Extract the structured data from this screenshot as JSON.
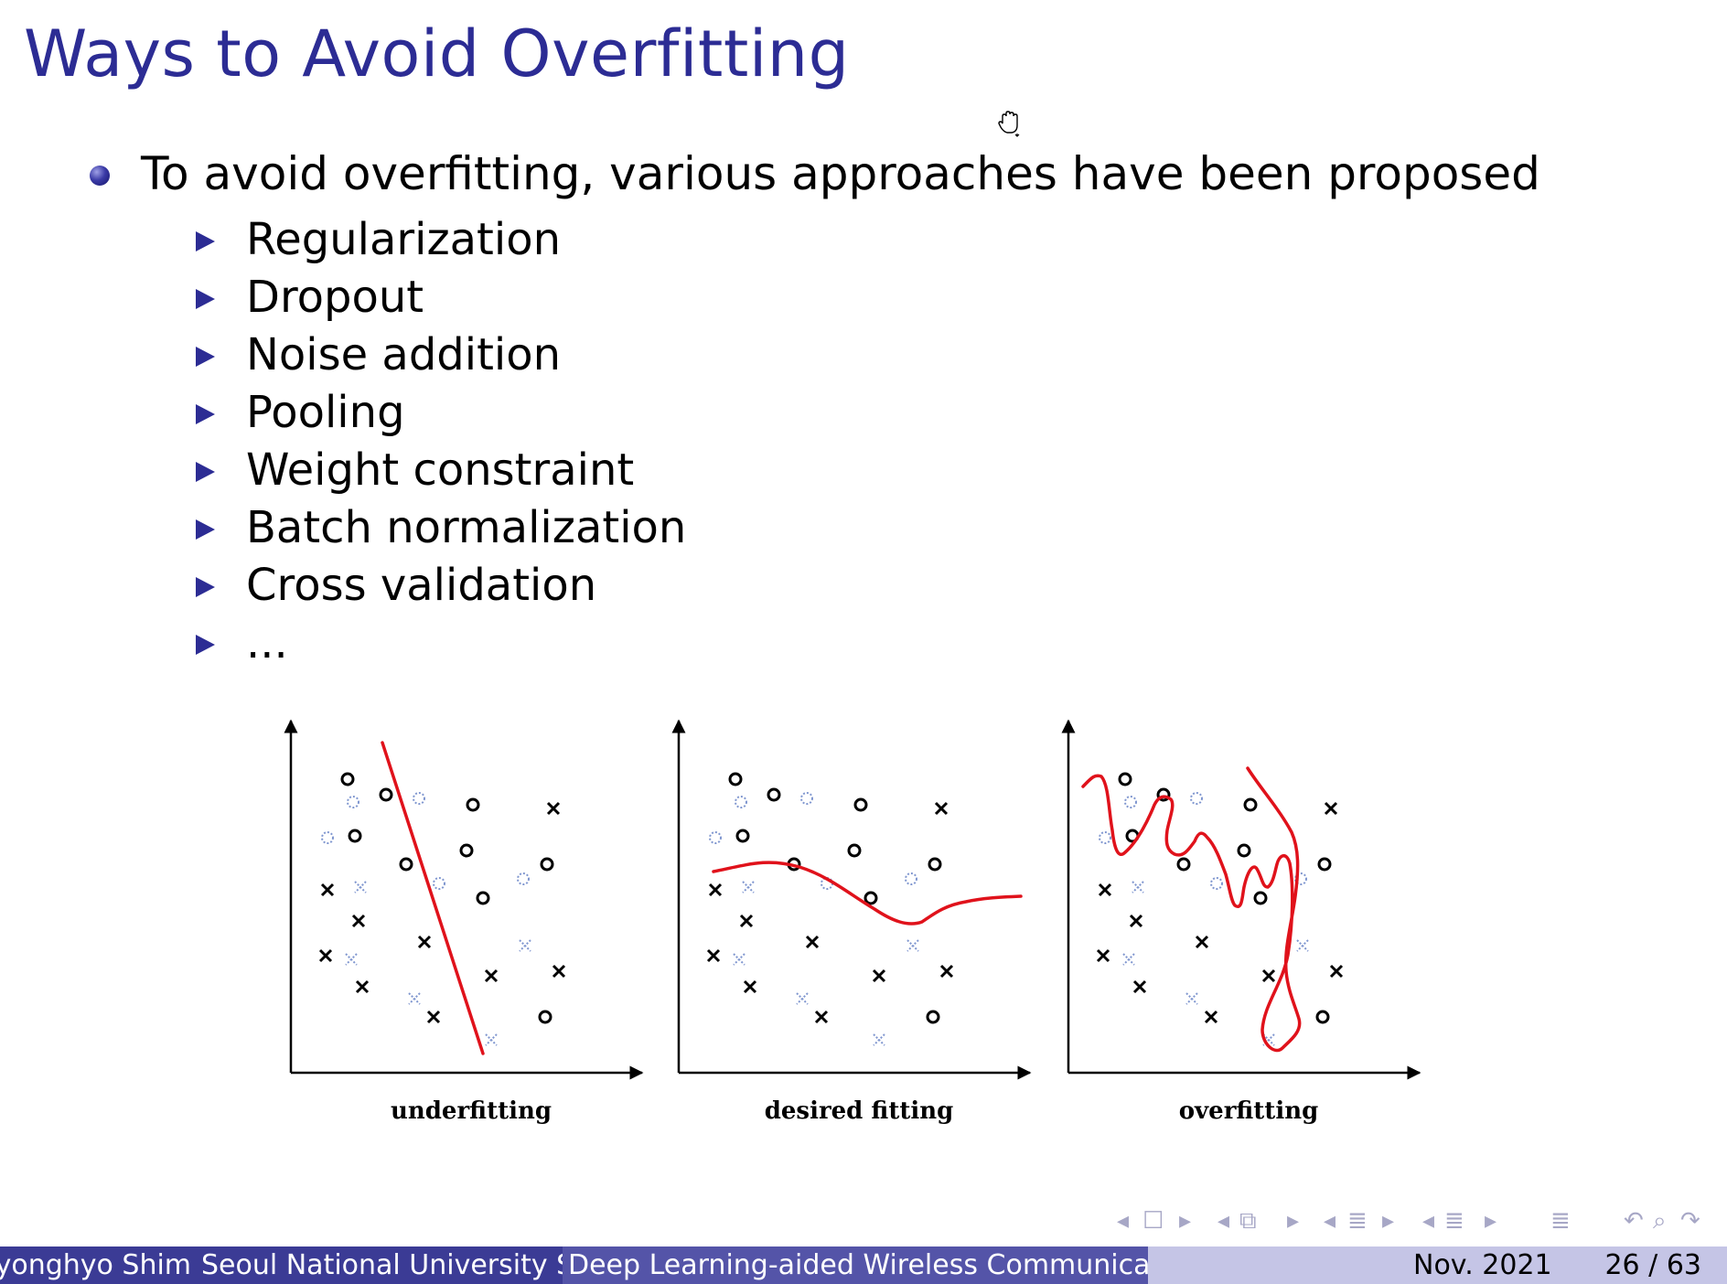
{
  "slide": {
    "title": "Ways to Avoid Overfitting",
    "main_bullet": "To avoid overfitting, various approaches have been proposed",
    "sub_items": [
      "Regularization",
      "Dropout",
      "Noise addition",
      "Pooling",
      "Weight constraint",
      "Batch normalization",
      "Cross validation",
      "..."
    ]
  },
  "figure": {
    "captions": [
      "underfitting",
      "desired fitting",
      "overfitting"
    ],
    "fit_color": "#e0121b",
    "solid_marker_color": "#000000",
    "faded_marker_color": "#7f96cf"
  },
  "navigation": {
    "controls": [
      "previous-frame",
      "frame",
      "next-frame",
      "previous-slide",
      "slide",
      "next-slide",
      "previous-subsection",
      "subsection",
      "next-subsection",
      "previous-section",
      "section",
      "next-section",
      "outline",
      "undo",
      "search",
      "redo"
    ]
  },
  "footer": {
    "author": "Byonghyo Shim",
    "institute": "Seoul National University  Seoul National University",
    "title": "Deep Learning-aided Wireless Communications",
    "date": "Nov. 2021",
    "page": "26 / 63"
  },
  "colors": {
    "title": "#2c2c94",
    "footer_left": "#3b3b95",
    "footer_mid": "#5454a8",
    "footer_right": "#c5c5e6",
    "nav_controls": "#a7a7c6"
  },
  "icons": {
    "cursor": "hand-grab-cursor-icon"
  }
}
